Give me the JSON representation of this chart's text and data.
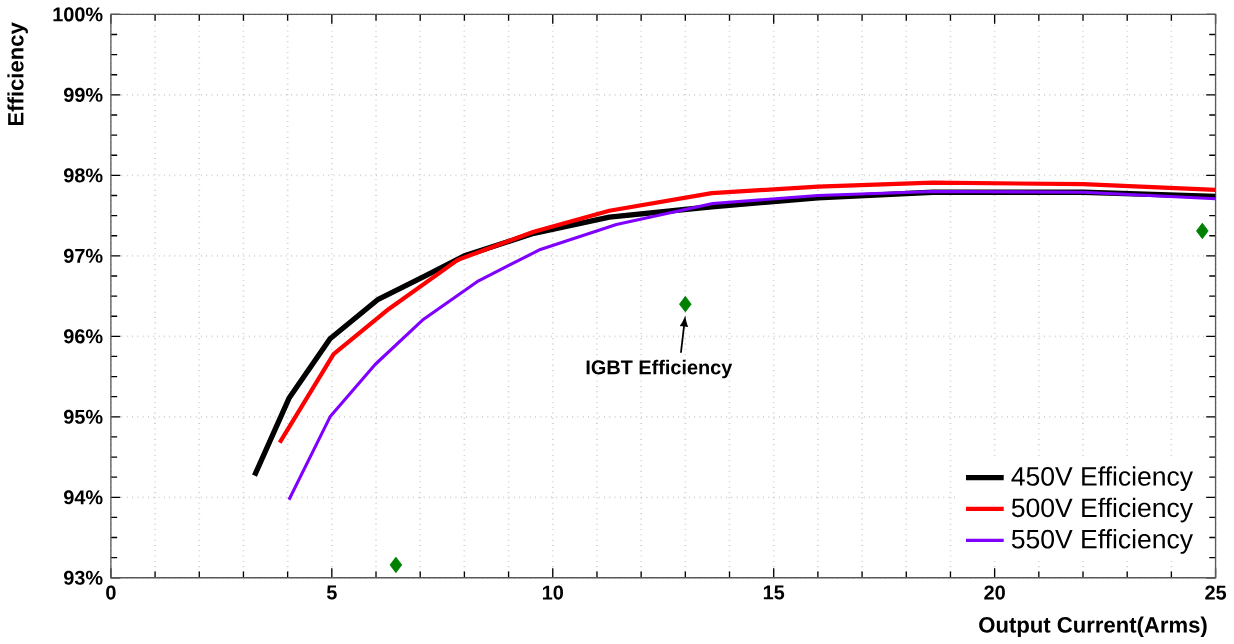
{
  "chart_data": {
    "type": "line",
    "xlabel": "Output Current(Arms)",
    "ylabel": "Efficiency",
    "xlim": [
      0,
      25
    ],
    "xticks": [
      0,
      5,
      10,
      15,
      20,
      25
    ],
    "ylim": [
      93,
      100
    ],
    "yticks": [
      {
        "value": 93,
        "label": "93%"
      },
      {
        "value": 94,
        "label": "94%"
      },
      {
        "value": 95,
        "label": "95%"
      },
      {
        "value": 96,
        "label": "96%"
      },
      {
        "value": 97,
        "label": "97%"
      },
      {
        "value": 98,
        "label": "98%"
      },
      {
        "value": 99,
        "label": "99%"
      },
      {
        "value": 100,
        "label": "100%"
      }
    ],
    "grid": true,
    "legend": "bottom right",
    "annotations": [
      {
        "text": "IGBT Efficiency",
        "x": 13,
        "y": 96.4
      }
    ],
    "series": [
      {
        "name": "450V Efficiency",
        "color": "#000000",
        "x": [
          3.25,
          4.03,
          4.96,
          6.05,
          7.07,
          8.0,
          9.57,
          11.28,
          13.6,
          16,
          18.6,
          22,
          25
        ],
        "values": [
          94.27,
          95.23,
          95.97,
          96.46,
          96.74,
          97.0,
          97.28,
          97.48,
          97.61,
          97.72,
          97.79,
          97.79,
          97.74
        ]
      },
      {
        "name": "500V Efficiency",
        "color": "#ff0000",
        "x": [
          3.82,
          5.04,
          6.29,
          7.85,
          9.57,
          11.28,
          13.6,
          16,
          18.6,
          22,
          25
        ],
        "values": [
          94.68,
          95.78,
          96.34,
          96.95,
          97.3,
          97.56,
          97.78,
          97.86,
          97.91,
          97.89,
          97.82
        ]
      },
      {
        "name": "550V Efficiency",
        "color": "#8000ff",
        "x": [
          4.03,
          4.96,
          5.98,
          7.07,
          8.32,
          9.72,
          11.44,
          13.62,
          16,
          18.6,
          22,
          25
        ],
        "values": [
          93.97,
          95.0,
          95.65,
          96.21,
          96.69,
          97.08,
          97.39,
          97.65,
          97.75,
          97.8,
          97.79,
          97.71
        ]
      },
      {
        "type": "scatter",
        "marker": "diamond",
        "color": "#008000",
        "x": [
          6.45,
          13.0,
          24.7
        ],
        "values": [
          93.16,
          96.4,
          97.31
        ]
      }
    ]
  }
}
